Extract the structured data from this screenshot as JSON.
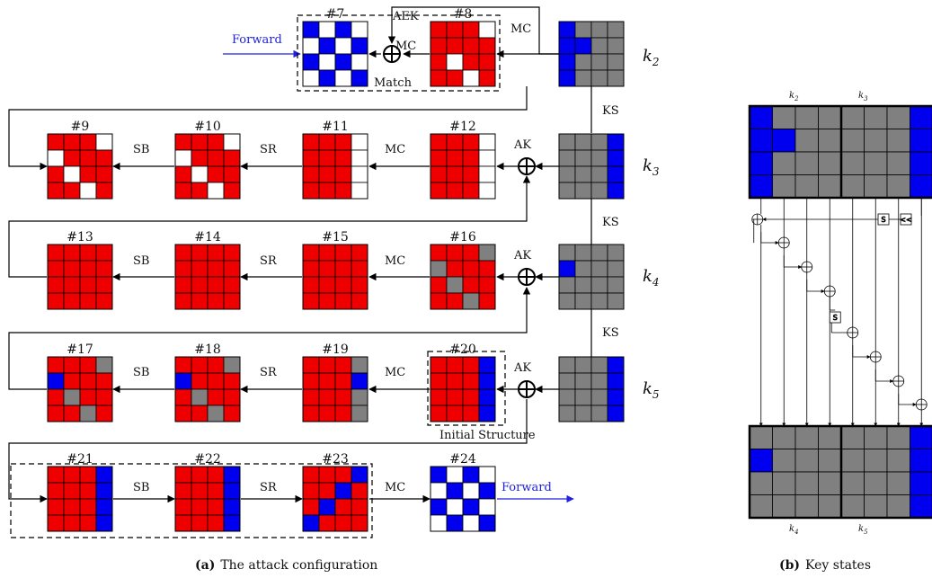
{
  "colors": {
    "red": "#ee0000",
    "blue": "#0000ee",
    "gray": "#808080",
    "white": "#ffffff",
    "arrow_blue": "#2222dd"
  },
  "diagram": {
    "blocks": [
      {
        "label": "#7",
        "grid": [
          "BWBW",
          "WBWB",
          "BWBW",
          "WBWB"
        ]
      },
      {
        "label": "#8",
        "grid": [
          "RRRW",
          "RRRR",
          "RWRR",
          "RRWR"
        ]
      },
      {
        "label": "#9",
        "grid": [
          "RRRW",
          "WRRR",
          "RWRR",
          "RRWR"
        ]
      },
      {
        "label": "#10",
        "grid": [
          "RRRW",
          "WRRR",
          "RWRR",
          "RRWR"
        ]
      },
      {
        "label": "#11",
        "grid": [
          "RRRW",
          "RRRW",
          "RRRW",
          "RRRW"
        ]
      },
      {
        "label": "#12",
        "grid": [
          "RRRW",
          "RRRW",
          "RRRW",
          "RRRW"
        ]
      },
      {
        "label": "#13",
        "grid": [
          "RRRR",
          "RRRR",
          "RRRR",
          "RRRR"
        ]
      },
      {
        "label": "#14",
        "grid": [
          "RRRR",
          "RRRR",
          "RRRR",
          "RRRR"
        ]
      },
      {
        "label": "#15",
        "grid": [
          "RRRR",
          "RRRR",
          "RRRR",
          "RRRR"
        ]
      },
      {
        "label": "#16",
        "grid": [
          "RRRG",
          "GRRR",
          "RGRR",
          "RRGR"
        ]
      },
      {
        "label": "#17",
        "grid": [
          "RRRG",
          "BRRR",
          "RGRR",
          "RRGR"
        ]
      },
      {
        "label": "#18",
        "grid": [
          "RRRG",
          "BRRR",
          "RGRR",
          "RRGR"
        ]
      },
      {
        "label": "#19",
        "grid": [
          "RRRG",
          "RRRB",
          "RRRG",
          "RRRG"
        ]
      },
      {
        "label": "#20",
        "grid": [
          "RRRB",
          "RRRB",
          "RRRB",
          "RRRB"
        ]
      },
      {
        "label": "#21",
        "grid": [
          "RRRB",
          "RRRB",
          "RRRB",
          "RRRB"
        ]
      },
      {
        "label": "#22",
        "grid": [
          "RRRB",
          "RRRB",
          "RRRB",
          "RRRB"
        ]
      },
      {
        "label": "#23",
        "grid": [
          "RRRB",
          "RRBR",
          "RBRR",
          "BRRR"
        ]
      },
      {
        "label": "#24",
        "grid": [
          "BWBW",
          "WBWB",
          "BWBW",
          "WBWB"
        ]
      }
    ],
    "keys": [
      {
        "label": "k",
        "sub": "2",
        "grid": [
          "BGGG",
          "BBGG",
          "BGGG",
          "BGGG"
        ]
      },
      {
        "label": "k",
        "sub": "3",
        "grid": [
          "GGGB",
          "GGGB",
          "GGGB",
          "GGGB"
        ]
      },
      {
        "label": "k",
        "sub": "4",
        "grid": [
          "GGGG",
          "BGGG",
          "GGGG",
          "GGGG"
        ]
      },
      {
        "label": "k",
        "sub": "5",
        "grid": [
          "GGGB",
          "GGGB",
          "GGGB",
          "GGGB"
        ]
      }
    ],
    "ops": {
      "sb": "SB",
      "sr": "SR",
      "mc": "MC",
      "ak": "AK",
      "aek": "AEK",
      "ks": "KS"
    },
    "notes": {
      "forward": "Forward",
      "match": "Match",
      "initial_structure": "Initial Structure"
    },
    "key_states": {
      "top_left": "k",
      "top_left_sub": "2",
      "top_right": "k",
      "top_right_sub": "3",
      "bottom_left": "k",
      "bottom_left_sub": "4",
      "bottom_right": "k",
      "bottom_right_sub": "5",
      "top_grid": [
        "BGGGGGGB",
        "BBGGGGGB",
        "BGGGGGGB",
        "BGGGGGGB"
      ],
      "bottom_grid": [
        "GGGGGGGB",
        "BGGGGGGB",
        "GGGGGGGB",
        "GGGGGGGB"
      ],
      "sbox": "S",
      "rot": "<<"
    }
  },
  "captions": {
    "a_tag": "(a)",
    "a_text": "The attack configuration",
    "b_tag": "(b)",
    "b_text": "Key states"
  }
}
